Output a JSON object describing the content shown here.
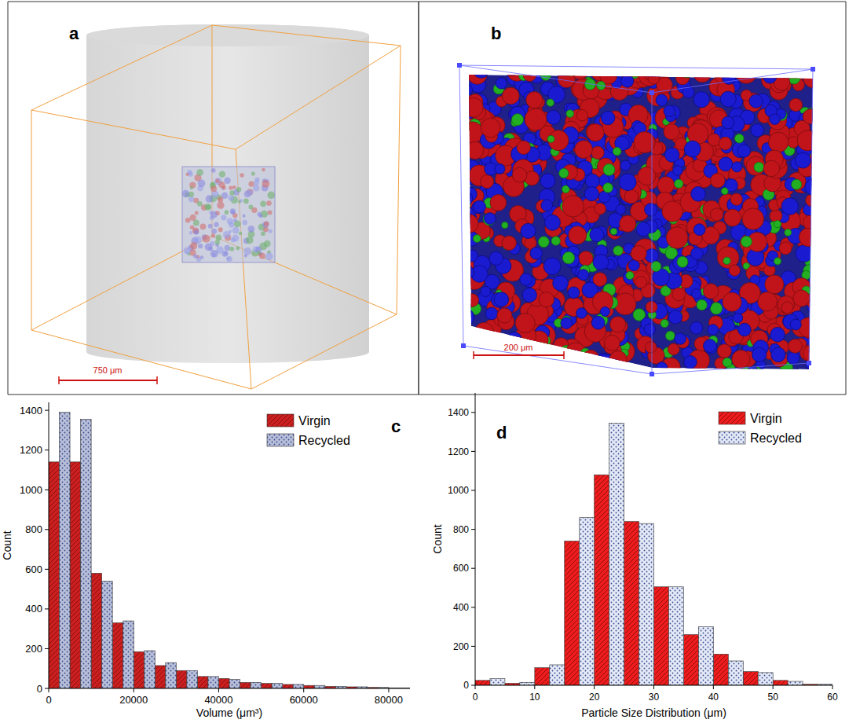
{
  "chart_data": [
    {
      "type": "histogram",
      "panel_label": "c",
      "x_label": "Volume (μm³)",
      "y_label": "Count",
      "bins": [
        0,
        5000,
        10000,
        15000,
        20000,
        25000,
        30000,
        35000,
        40000,
        45000,
        50000,
        55000,
        60000,
        65000,
        70000,
        75000,
        80000,
        85000
      ],
      "series": [
        {
          "name": "Virgin",
          "color": "#cc1f1f",
          "values": [
            1140,
            1140,
            580,
            330,
            185,
            115,
            90,
            60,
            50,
            30,
            25,
            20,
            15,
            10,
            8,
            5,
            3
          ]
        },
        {
          "name": "Recycled",
          "color": "#b8bfd9",
          "values": [
            1390,
            1355,
            540,
            340,
            190,
            130,
            90,
            60,
            45,
            30,
            25,
            20,
            15,
            10,
            8,
            5,
            3
          ]
        }
      ],
      "xlim": [
        0,
        85000
      ],
      "ylim": [
        0,
        1440
      ],
      "xticks": [
        0,
        20000,
        40000,
        60000,
        80000
      ],
      "yticks": [
        0,
        200,
        400,
        600,
        800,
        1000,
        1200,
        1400
      ],
      "legend": "upper right"
    },
    {
      "type": "histogram",
      "panel_label": "d",
      "x_label": "Particle Size Distribution (μm)",
      "y_label": "Count",
      "bins": [
        0,
        5,
        10,
        15,
        20,
        25,
        30,
        35,
        40,
        45,
        50,
        55,
        60
      ],
      "series": [
        {
          "name": "Virgin",
          "color": "#ee1c1c",
          "values": [
            25,
            10,
            90,
            740,
            1080,
            840,
            505,
            260,
            160,
            70,
            25,
            5
          ]
        },
        {
          "name": "Recycled",
          "color": "#e3e9f7",
          "values": [
            35,
            15,
            105,
            860,
            1345,
            830,
            505,
            300,
            125,
            65,
            20,
            5
          ]
        }
      ],
      "xlim": [
        0,
        60
      ],
      "ylim": [
        0,
        1500
      ],
      "xticks": [
        0,
        10,
        20,
        30,
        40,
        50,
        60
      ],
      "yticks": [
        0,
        200,
        400,
        600,
        800,
        1000,
        1200,
        1400
      ],
      "legend": "upper right"
    }
  ],
  "images": [
    {
      "panel_label": "a",
      "scale_bar": "750 μm"
    },
    {
      "panel_label": "b",
      "scale_bar": "200 μm"
    }
  ]
}
